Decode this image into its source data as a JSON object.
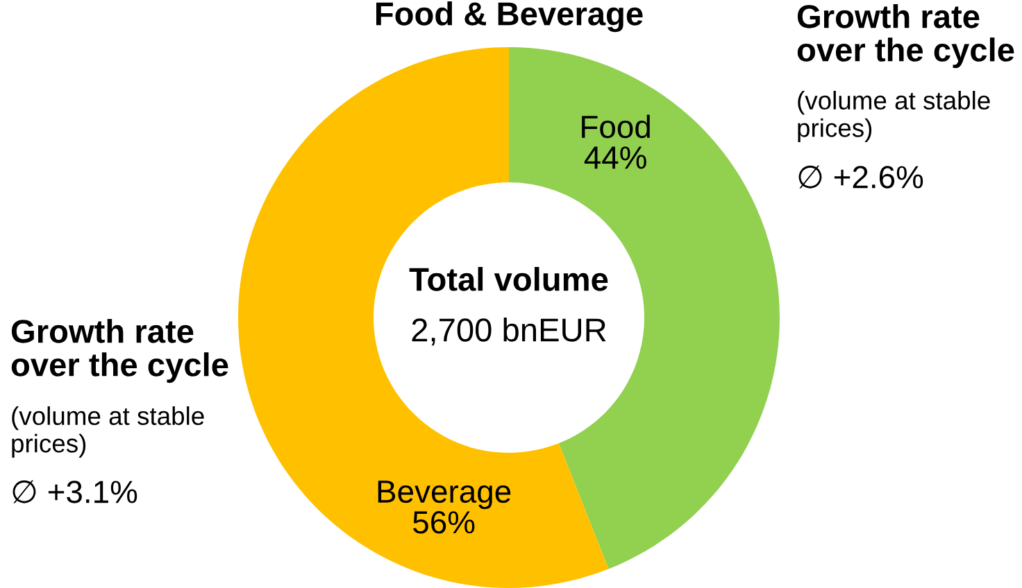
{
  "chart_data": {
    "type": "donut",
    "title": "Food & Beverage",
    "categories": [
      "Food",
      "Beverage"
    ],
    "values": [
      44,
      56
    ],
    "colors": [
      "#92d050",
      "#ffc000"
    ],
    "value_labels": [
      "44%",
      "56%"
    ],
    "annotations": [
      "Total volume",
      "2,700 bnEUR",
      "Growth rate\nover the cycle",
      "(volume at stable\nprices)",
      "∅ +2.6%",
      "Growth rate\nover the cycle",
      "(volume at stable\nprices)",
      "∅ +3.1%"
    ]
  }
}
